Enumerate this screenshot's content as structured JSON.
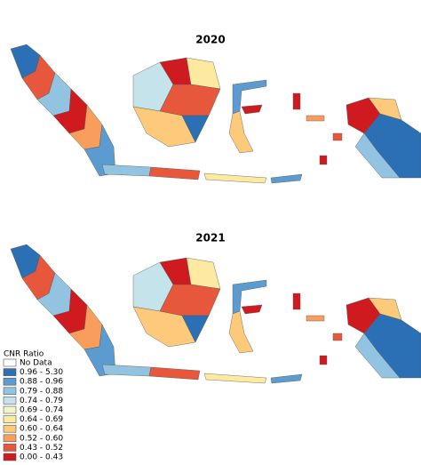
{
  "maps": [
    {
      "title": "2020"
    },
    {
      "title": "2021"
    }
  ],
  "legend": {
    "title": "CNR Ratio",
    "items": [
      {
        "label": "No Data",
        "color": "#ffffff"
      },
      {
        "label": "0.96 - 5.30",
        "color": "#2b6fb4"
      },
      {
        "label": "0.88 - 0.96",
        "color": "#5b9bd0"
      },
      {
        "label": "0.79 - 0.88",
        "color": "#92c3e0"
      },
      {
        "label": "0.74 - 0.79",
        "color": "#c4e3ea"
      },
      {
        "label": "0.69 - 0.74",
        "color": "#f0f5c8"
      },
      {
        "label": "0.64 - 0.69",
        "color": "#fde9a0"
      },
      {
        "label": "0.60 - 0.64",
        "color": "#fdc97a"
      },
      {
        "label": "0.52 - 0.60",
        "color": "#f99d5c"
      },
      {
        "label": "0.43 - 0.52",
        "color": "#e7573c"
      },
      {
        "label": "0.00 - 0.43",
        "color": "#cf1a1f"
      }
    ]
  }
}
